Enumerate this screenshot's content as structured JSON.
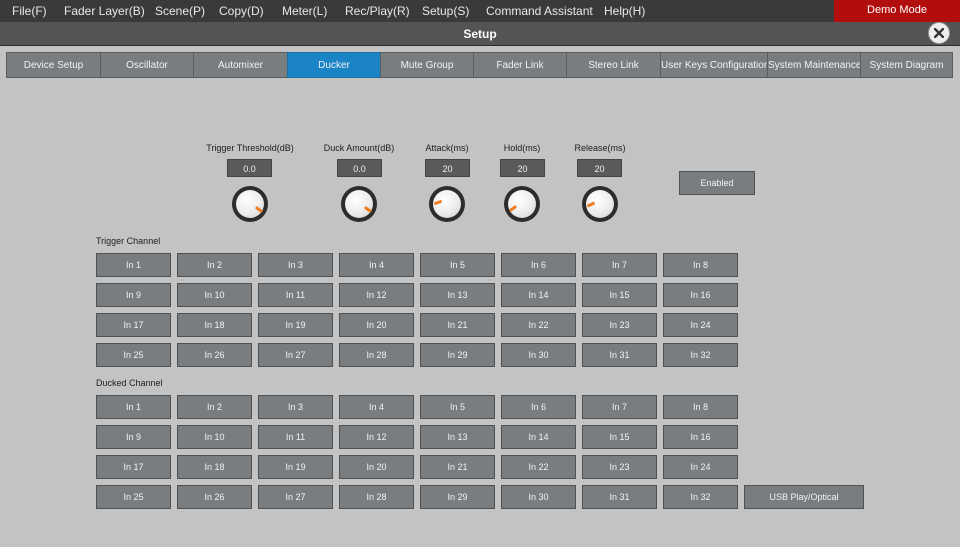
{
  "menu": [
    {
      "label": "File(F)"
    },
    {
      "label": "Fader Layer(B)"
    },
    {
      "label": "Scene(P)"
    },
    {
      "label": "Copy(D)"
    },
    {
      "label": "Meter(L)"
    },
    {
      "label": "Rec/Play(R)"
    },
    {
      "label": "Setup(S)"
    },
    {
      "label": "Command Assistant"
    },
    {
      "label": "Help(H)"
    }
  ],
  "demo_mode": "Demo Mode",
  "window_title": "Setup",
  "tabs": [
    {
      "label": "Device Setup",
      "active": false
    },
    {
      "label": "Oscillator",
      "active": false
    },
    {
      "label": "Automixer",
      "active": false
    },
    {
      "label": "Ducker",
      "active": true
    },
    {
      "label": "Mute Group",
      "active": false
    },
    {
      "label": "Fader Link",
      "active": false
    },
    {
      "label": "Stereo Link",
      "active": false
    },
    {
      "label": "User Keys Configuration",
      "active": false
    },
    {
      "label": "System Maintenance",
      "active": false
    },
    {
      "label": "System Diagram",
      "active": false
    }
  ],
  "params": {
    "trigger_threshold": {
      "label": "Trigger Threshold(dB)",
      "value": "0.0"
    },
    "duck_amount": {
      "label": "Duck Amount(dB)",
      "value": "0.0"
    },
    "attack": {
      "label": "Attack(ms)",
      "value": "20"
    },
    "hold": {
      "label": "Hold(ms)",
      "value": "20"
    },
    "release": {
      "label": "Release(ms)",
      "value": "20"
    }
  },
  "enabled_label": "Enabled",
  "trigger_channel": {
    "label": "Trigger Channel",
    "channels": [
      "In 1",
      "In 2",
      "In 3",
      "In 4",
      "In 5",
      "In 6",
      "In 7",
      "In 8",
      "In 9",
      "In 10",
      "In 11",
      "In 12",
      "In 13",
      "In 14",
      "In 15",
      "In 16",
      "In 17",
      "In 18",
      "In 19",
      "In 20",
      "In 21",
      "In 22",
      "In 23",
      "In 24",
      "In 25",
      "In 26",
      "In 27",
      "In 28",
      "In 29",
      "In 30",
      "In 31",
      "In 32"
    ]
  },
  "ducked_channel": {
    "label": "Ducked Channel",
    "channels": [
      "In 1",
      "In 2",
      "In 3",
      "In 4",
      "In 5",
      "In 6",
      "In 7",
      "In 8",
      "In 9",
      "In 10",
      "In 11",
      "In 12",
      "In 13",
      "In 14",
      "In 15",
      "In 16",
      "In 17",
      "In 18",
      "In 19",
      "In 20",
      "In 21",
      "In 22",
      "In 23",
      "In 24",
      "In 25",
      "In 26",
      "In 27",
      "In 28",
      "In 29",
      "In 30",
      "In 31",
      "In 32"
    ],
    "extra": "USB Play/Optical"
  },
  "colors": {
    "accent_tab": "#1a84c7",
    "demo_mode_bg": "#b20e0e",
    "knob_indicator": "#ef7d22"
  }
}
